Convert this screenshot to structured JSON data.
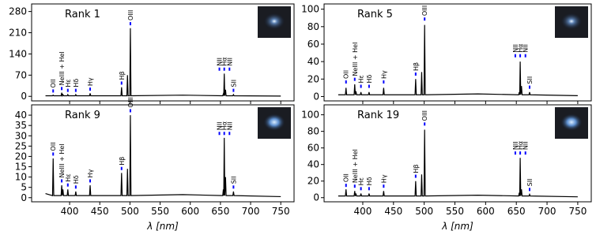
{
  "chart_data": [
    {
      "type": "line",
      "title": "Rank 1",
      "color": "#000000",
      "annotation_color": "#0000ff",
      "show_xticklabels": false,
      "xlim": [
        337,
        772
      ],
      "xticks": [
        400,
        450,
        500,
        550,
        600,
        650,
        700,
        750
      ],
      "ylim": [
        -15,
        305
      ],
      "yticks": [
        0,
        70,
        140,
        210,
        280
      ],
      "x": [
        360,
        371.7,
        372.7,
        373.7,
        385.9,
        386.9,
        387.9,
        388.9,
        389.9,
        396,
        397,
        398,
        409.2,
        410.2,
        411.2,
        433,
        434,
        435,
        485.1,
        486.1,
        487.1,
        494.9,
        495.9,
        496.9,
        499.7,
        500.7,
        501.7,
        587.6,
        653.8,
        654.8,
        655.5,
        656.3,
        657.2,
        658.4,
        659.4,
        670.6,
        671.6,
        672.6,
        750
      ],
      "values": [
        2,
        2,
        4,
        2,
        2,
        12,
        2,
        6,
        2,
        2,
        6,
        2,
        2,
        6,
        2,
        2,
        10,
        2,
        2,
        30,
        2,
        2,
        70,
        2,
        2,
        225,
        2,
        4,
        2,
        8,
        2,
        75,
        2,
        22,
        2,
        2,
        6,
        2,
        1
      ],
      "annotations": [
        {
          "text": "OII",
          "x": 372.7,
          "y": 10
        },
        {
          "text": "NeIII + HeI",
          "x": 386.9,
          "y": 18
        },
        {
          "text": "Hε",
          "x": 397,
          "y": 12
        },
        {
          "text": "Hδ",
          "x": 410.2,
          "y": 12
        },
        {
          "text": "Hγ",
          "x": 434,
          "y": 16
        },
        {
          "text": "Hβ",
          "x": 486.1,
          "y": 36
        },
        {
          "text": "OIII",
          "x": 500.7,
          "y": 232
        },
        {
          "text": "NII",
          "x": 654.8,
          "y": 82
        },
        {
          "text": "Hα",
          "x": 656.3,
          "y": 82
        },
        {
          "text": "NII",
          "x": 658.4,
          "y": 82
        },
        {
          "text": "SII",
          "x": 671.6,
          "y": 12
        }
      ]
    },
    {
      "type": "line",
      "title": "Rank 5",
      "color": "#000000",
      "annotation_color": "#0000ff",
      "show_xticklabels": false,
      "xlim": [
        337,
        772
      ],
      "xticks": [
        400,
        450,
        500,
        550,
        600,
        650,
        700,
        750
      ],
      "ylim": [
        -5,
        106
      ],
      "yticks": [
        0,
        20,
        40,
        60,
        80,
        100
      ],
      "x": [
        360,
        371.7,
        372.7,
        373.7,
        385.9,
        386.9,
        387.9,
        388.9,
        389.9,
        396,
        397,
        398,
        409.2,
        410.2,
        411.2,
        433,
        434,
        435,
        485.1,
        486.1,
        487.1,
        494.9,
        495.9,
        496.9,
        499.7,
        500.7,
        501.7,
        587.6,
        653.8,
        654.8,
        655.5,
        656.3,
        657.2,
        658.4,
        659.4,
        670.6,
        671.6,
        672.6,
        750
      ],
      "values": [
        2,
        2,
        10,
        2,
        2,
        14,
        2,
        6,
        2,
        2,
        5,
        2,
        2,
        5,
        2,
        2,
        10,
        2,
        2,
        20,
        2,
        2,
        28,
        2,
        2,
        82,
        2,
        3,
        2,
        5,
        2,
        40,
        2,
        12,
        2,
        2,
        5,
        2,
        1
      ],
      "annotations": [
        {
          "text": "OII",
          "x": 372.7,
          "y": 14
        },
        {
          "text": "NeIII + HeI",
          "x": 386.9,
          "y": 17
        },
        {
          "text": "Hε",
          "x": 397,
          "y": 9
        },
        {
          "text": "Hδ",
          "x": 410.2,
          "y": 9
        },
        {
          "text": "Hγ",
          "x": 434,
          "y": 14
        },
        {
          "text": "Hβ",
          "x": 486.1,
          "y": 23
        },
        {
          "text": "OIII",
          "x": 500.7,
          "y": 86
        },
        {
          "text": "NII",
          "x": 654.8,
          "y": 44
        },
        {
          "text": "Hα",
          "x": 656.3,
          "y": 44
        },
        {
          "text": "NII",
          "x": 658.4,
          "y": 44
        },
        {
          "text": "SII",
          "x": 671.6,
          "y": 8
        }
      ]
    },
    {
      "type": "line",
      "title": "Rank 9",
      "color": "#000000",
      "annotation_color": "#0000ff",
      "show_xticklabels": true,
      "xlabel": "λ [nm]",
      "xlim": [
        337,
        772
      ],
      "xticks": [
        400,
        450,
        500,
        550,
        600,
        650,
        700,
        750
      ],
      "ylim": [
        -2,
        45
      ],
      "yticks": [
        0,
        5,
        10,
        15,
        20,
        25,
        30,
        35,
        40
      ],
      "x": [
        360,
        371.7,
        372.7,
        373.7,
        385.9,
        386.9,
        387.9,
        388.9,
        389.9,
        396,
        397,
        398,
        409.2,
        410.2,
        411.2,
        433,
        434,
        435,
        485.1,
        486.1,
        487.1,
        494.9,
        495.9,
        496.9,
        499.7,
        500.7,
        501.7,
        587.6,
        653.8,
        654.8,
        655.5,
        656.3,
        657.2,
        658.4,
        659.4,
        670.6,
        671.6,
        672.6,
        750
      ],
      "values": [
        2,
        1,
        19,
        1,
        1,
        6,
        1,
        4,
        1,
        1,
        4,
        1,
        1,
        3,
        1,
        1,
        6,
        1,
        1,
        12,
        1,
        1,
        14,
        1,
        1,
        40,
        1,
        1.5,
        1,
        4,
        1,
        29,
        1,
        10,
        1,
        1,
        3,
        1,
        0.5
      ],
      "annotations": [
        {
          "text": "OII",
          "x": 372.7,
          "y": 20
        },
        {
          "text": "NeIII + HeI",
          "x": 386.9,
          "y": 7
        },
        {
          "text": "Hε",
          "x": 397,
          "y": 5
        },
        {
          "text": "Hδ",
          "x": 410.2,
          "y": 4
        },
        {
          "text": "Hγ",
          "x": 434,
          "y": 7
        },
        {
          "text": "Hβ",
          "x": 486.1,
          "y": 13
        },
        {
          "text": "OIII",
          "x": 500.7,
          "y": 41
        },
        {
          "text": "NII",
          "x": 654.8,
          "y": 30
        },
        {
          "text": "Hα",
          "x": 656.3,
          "y": 30
        },
        {
          "text": "NII",
          "x": 658.4,
          "y": 30
        },
        {
          "text": "SII",
          "x": 671.6,
          "y": 4
        }
      ]
    },
    {
      "type": "line",
      "title": "Rank 19",
      "color": "#000000",
      "annotation_color": "#0000ff",
      "show_xticklabels": true,
      "xlabel": "λ [nm]",
      "xlim": [
        337,
        772
      ],
      "xticks": [
        400,
        450,
        500,
        550,
        600,
        650,
        700,
        750
      ],
      "ylim": [
        -5,
        112
      ],
      "yticks": [
        0,
        20,
        40,
        60,
        80,
        100
      ],
      "x": [
        360,
        371.7,
        372.7,
        373.7,
        385.9,
        386.9,
        387.9,
        388.9,
        389.9,
        396,
        397,
        398,
        409.2,
        410.2,
        411.2,
        433,
        434,
        435,
        485.1,
        486.1,
        487.1,
        494.9,
        495.9,
        496.9,
        499.7,
        500.7,
        501.7,
        587.6,
        653.8,
        654.8,
        655.5,
        656.3,
        657.2,
        658.4,
        659.4,
        670.6,
        671.6,
        672.6,
        750
      ],
      "values": [
        2,
        2,
        10,
        2,
        2,
        8,
        2,
        5,
        2,
        2,
        5,
        2,
        2,
        5,
        2,
        2,
        8,
        2,
        2,
        20,
        2,
        2,
        28,
        2,
        2,
        82,
        2,
        3,
        2,
        6,
        2,
        48,
        2,
        10,
        2,
        2,
        4,
        2,
        1
      ],
      "annotations": [
        {
          "text": "OII",
          "x": 372.7,
          "y": 12
        },
        {
          "text": "NeIII + HeI",
          "x": 386.9,
          "y": 11
        },
        {
          "text": "Hε",
          "x": 397,
          "y": 8
        },
        {
          "text": "Hδ",
          "x": 410.2,
          "y": 8
        },
        {
          "text": "Hγ",
          "x": 434,
          "y": 11
        },
        {
          "text": "Hβ",
          "x": 486.1,
          "y": 23
        },
        {
          "text": "OIII",
          "x": 500.7,
          "y": 86
        },
        {
          "text": "NII",
          "x": 654.8,
          "y": 51
        },
        {
          "text": "Hα",
          "x": 656.3,
          "y": 51
        },
        {
          "text": "NII",
          "x": 658.4,
          "y": 51
        },
        {
          "text": "SII",
          "x": 671.6,
          "y": 7
        }
      ]
    }
  ]
}
